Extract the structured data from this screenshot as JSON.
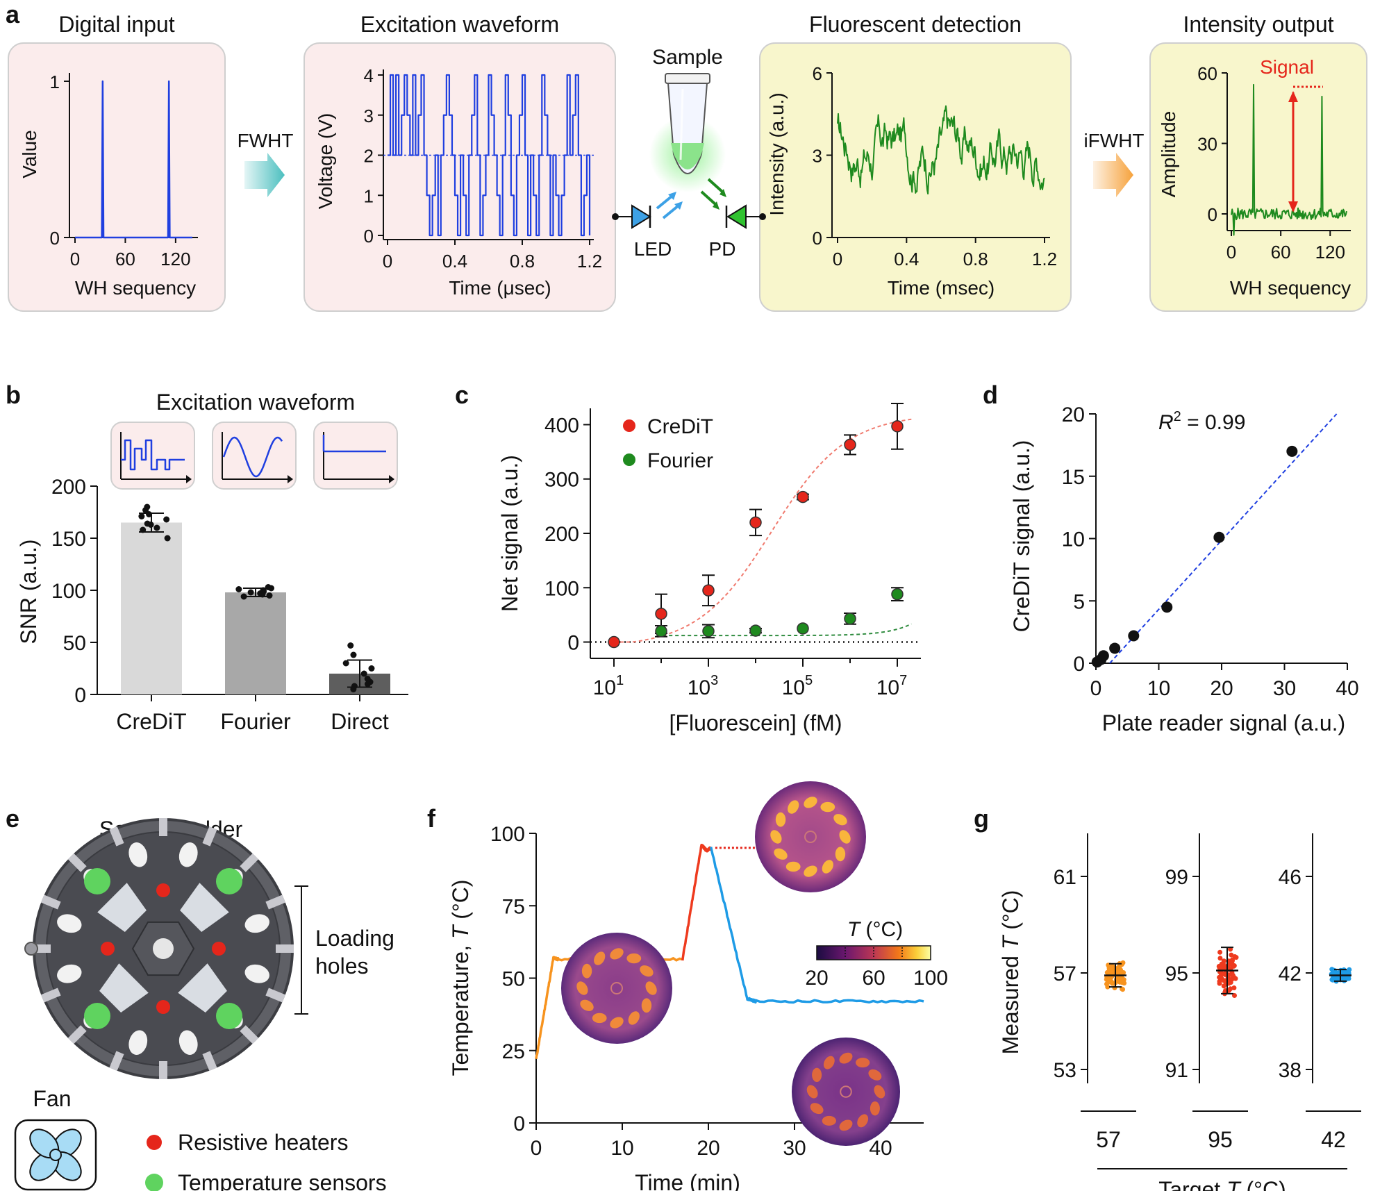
{
  "panel_labels": [
    "a",
    "b",
    "c",
    "d",
    "e",
    "f",
    "g"
  ],
  "colors": {
    "pink_box": "#fbecec",
    "yellow_box": "#f8f6cc",
    "box_border": "#cfcfcf",
    "blue_line": "#1f3fe0",
    "green_line": "#1e8a1e",
    "red": "#e5261b",
    "teal_arrow": "#4bbfbf",
    "orange_arrow": "#f6a23c",
    "led_blue": "#3da1e6",
    "pd_green": "#2fc22f",
    "orange_trace": "#f7931e",
    "red_trace": "#ee3a1e",
    "blue_trace": "#1e9be6"
  },
  "panel_a": {
    "boxes": [
      {
        "title": "Digital input",
        "ylabel": "Value",
        "xlabel": "WH sequency",
        "yticks": [
          "0",
          "1"
        ],
        "xticks": [
          "0",
          "60",
          "120"
        ]
      },
      {
        "title": "Excitation waveform",
        "ylabel": "Voltage (V)",
        "xlabel": "Time (μsec)",
        "yticks": [
          "0",
          "1",
          "2",
          "3",
          "4"
        ],
        "xticks": [
          "0",
          "0.4",
          "0.8",
          "1.2"
        ]
      },
      {
        "title": "Fluorescent detection",
        "ylabel": "Intensity (a.u.)",
        "xlabel": "Time (msec)",
        "yticks": [
          "0",
          "3",
          "6"
        ],
        "xticks": [
          "0",
          "0.4",
          "0.8",
          "1.2"
        ]
      },
      {
        "title": "Intensity output",
        "ylabel": "Amplitude",
        "xlabel": "WH sequency",
        "yticks": [
          "0",
          "30",
          "60"
        ],
        "xticks": [
          "0",
          "60",
          "120"
        ],
        "signal_label": "Signal"
      }
    ],
    "fwht_label": "FWHT",
    "ifwht_label": "iFWHT",
    "sample_label": "Sample",
    "led_label": "LED",
    "pd_label": "PD"
  },
  "panel_b": {
    "title": "Excitation waveform",
    "ylabel": "SNR (a.u.)",
    "chart_data": {
      "type": "bar",
      "categories": [
        "CreDiT",
        "Fourier",
        "Direct"
      ],
      "values": [
        165,
        98,
        20
      ],
      "errors": [
        9,
        4,
        13
      ],
      "ylim": [
        0,
        200
      ],
      "yticks": [
        "0",
        "50",
        "100",
        "150",
        "200"
      ],
      "points": [
        [
          177,
          171,
          168,
          164,
          160,
          158,
          150,
          173,
          180,
          163
        ],
        [
          102,
          100,
          98,
          97,
          96,
          101,
          95,
          99,
          103,
          94
        ],
        [
          47,
          38,
          25,
          20,
          12,
          8,
          5,
          15,
          30,
          10
        ]
      ],
      "bar_colors": [
        "#d9d9d9",
        "#a8a8a8",
        "#5e5e5e"
      ]
    }
  },
  "panel_c": {
    "xlabel": "[Fluorescein] (fM)",
    "ylabel": "Net signal (a.u.)",
    "xticks": [
      {
        "base": "10",
        "exp": "1"
      },
      {
        "base": "10",
        "exp": "3"
      },
      {
        "base": "10",
        "exp": "5"
      },
      {
        "base": "10",
        "exp": "7"
      }
    ],
    "yticks": [
      "0",
      "100",
      "200",
      "300",
      "400"
    ],
    "chart_data": {
      "type": "scatter",
      "ylim": [
        -30,
        430
      ],
      "xlog_range": [
        0.5,
        7.5
      ],
      "series": [
        {
          "name": "CreDiT",
          "color": "#e5261b",
          "x_log": [
            1,
            2,
            3,
            4,
            5,
            6,
            7
          ],
          "y": [
            0,
            52,
            95,
            220,
            267,
            363,
            397
          ],
          "err": [
            0,
            36,
            28,
            24,
            5,
            18,
            42
          ]
        },
        {
          "name": "Fourier",
          "color": "#1e8a1e",
          "x_log": [
            2,
            3,
            4,
            5,
            6,
            7
          ],
          "y": [
            20,
            20,
            21,
            25,
            43,
            88
          ],
          "err": [
            10,
            12,
            4,
            3,
            10,
            12
          ]
        }
      ]
    }
  },
  "panel_d": {
    "xlabel": "Plate reader signal (a.u.)",
    "ylabel": "CreDiT signal (a.u.)",
    "r2_label": "R",
    "r2_sup": "2",
    "r2_value": " = 0.99",
    "xticks": [
      "0",
      "10",
      "20",
      "30",
      "40"
    ],
    "yticks": [
      "0",
      "5",
      "10",
      "15",
      "20"
    ],
    "chart_data": {
      "type": "scatter",
      "xlim": [
        0,
        40
      ],
      "ylim": [
        0,
        20
      ],
      "x": [
        0.2,
        0.8,
        1.2,
        3,
        6,
        11.3,
        19.6,
        31.2
      ],
      "y": [
        0.1,
        0.3,
        0.6,
        1.2,
        2.2,
        4.5,
        10.1,
        17.0
      ],
      "fit": {
        "x0": 2.2,
        "y0": 0,
        "x1": 38.3,
        "y1": 20
      }
    }
  },
  "panel_e": {
    "title": "Sample holder",
    "loading_holes": [
      "Loading",
      "holes"
    ],
    "fan_label": "Fan",
    "legend": [
      {
        "label": "Resistive heaters",
        "color": "#e5261b"
      },
      {
        "label": "Temperature sensors",
        "color": "#5fd35f"
      }
    ]
  },
  "panel_f": {
    "ylabel_prefix": "Temperature, ",
    "ylabel_var": "T",
    "ylabel_unit": " (°C)",
    "xlabel": "Time (min)",
    "xticks": [
      "0",
      "10",
      "20",
      "30",
      "40"
    ],
    "yticks": [
      "0",
      "25",
      "50",
      "75",
      "100"
    ],
    "colorbar_title_var": "T",
    "colorbar_title_unit": " (°C)",
    "colorbar_ticks": [
      "20",
      "60",
      "100"
    ],
    "chart_data": {
      "type": "line",
      "xlim": [
        0,
        45
      ],
      "ylim": [
        0,
        100
      ],
      "series": [
        {
          "name": "heat-to-57",
          "color": "#f7931e",
          "x": [
            0,
            2,
            2.6,
            17
          ],
          "y": [
            22,
            57,
            56.5,
            56.5
          ]
        },
        {
          "name": "heat-to-95",
          "color": "#ee3a1e",
          "x": [
            17,
            19.2,
            19.8,
            20.3
          ],
          "y": [
            56.5,
            96,
            94,
            95
          ]
        },
        {
          "name": "cool-to-42",
          "color": "#1e9be6",
          "x": [
            20.3,
            24.5,
            25.5,
            45
          ],
          "y": [
            95,
            43,
            42,
            42
          ]
        }
      ]
    }
  },
  "panel_g": {
    "ylabel_prefix": "Measured ",
    "ylabel_var": "T",
    "ylabel_unit": " (°C)",
    "xlabel_prefix": "Target ",
    "xlabel_var": "T",
    "xlabel_unit": " (°C)",
    "chart_data": {
      "type": "scatter",
      "groups": [
        {
          "target": "57",
          "yticks": [
            "53",
            "57",
            "61"
          ],
          "ylim": [
            53,
            61
          ],
          "mean": 56.9,
          "sd": 0.3,
          "color": "#f7931e"
        },
        {
          "target": "95",
          "yticks": [
            "91",
            "95",
            "99"
          ],
          "ylim": [
            91,
            99
          ],
          "mean": 95.1,
          "sd": 0.6,
          "color": "#ee3a1e"
        },
        {
          "target": "42",
          "yticks": [
            "38",
            "42",
            "46"
          ],
          "ylim": [
            38,
            46
          ],
          "mean": 41.9,
          "sd": 0.15,
          "color": "#1e9be6"
        }
      ]
    }
  }
}
